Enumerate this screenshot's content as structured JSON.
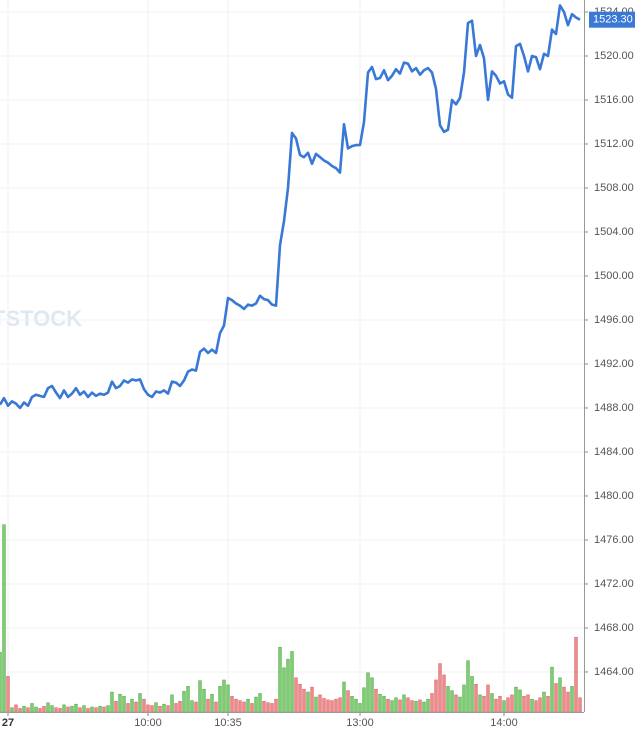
{
  "chart_data": {
    "type": "line",
    "watermark": "TSTOCK",
    "xlim": [
      0,
      146
    ],
    "xticks": [
      {
        "value": 2,
        "label": "27"
      },
      {
        "value": 37,
        "label": "10:00"
      },
      {
        "value": 57,
        "label": "10:35"
      },
      {
        "value": 90,
        "label": "13:00"
      },
      {
        "value": 126,
        "label": "14:00"
      }
    ],
    "ylim": [
      1460.36,
      1525.09
    ],
    "yticks": [
      {
        "value": 1464,
        "label": "1464.00"
      },
      {
        "value": 1468,
        "label": "1468.00"
      },
      {
        "value": 1472,
        "label": "1472.00"
      },
      {
        "value": 1476,
        "label": "1476.00"
      },
      {
        "value": 1480,
        "label": "1480.00"
      },
      {
        "value": 1484,
        "label": "1484.00"
      },
      {
        "value": 1488,
        "label": "1488.00"
      },
      {
        "value": 1492,
        "label": "1492.00"
      },
      {
        "value": 1496,
        "label": "1496.00"
      },
      {
        "value": 1500,
        "label": "1500.00"
      },
      {
        "value": 1504,
        "label": "1504.00"
      },
      {
        "value": 1508,
        "label": "1508.00"
      },
      {
        "value": 1512,
        "label": "1512.00"
      },
      {
        "value": 1516,
        "label": "1516.00"
      },
      {
        "value": 1520,
        "label": "1520.00"
      },
      {
        "value": 1524,
        "label": "1524.00"
      }
    ],
    "y2lim": [
      0,
      100
    ],
    "grid": true,
    "last_value_label": "1523.30",
    "series": [
      {
        "type": "line",
        "color": "#3a78d6",
        "values": [
          1488.3,
          1488.9,
          1488.2,
          1488.6,
          1488.4,
          1488.0,
          1488.5,
          1488.2,
          1489.0,
          1489.2,
          1489.1,
          1489.0,
          1489.8,
          1490.0,
          1489.4,
          1488.9,
          1489.6,
          1489.0,
          1489.3,
          1489.8,
          1489.2,
          1489.5,
          1489.0,
          1489.4,
          1489.1,
          1489.3,
          1489.2,
          1489.4,
          1490.4,
          1489.8,
          1490.0,
          1490.5,
          1490.3,
          1490.6,
          1490.5,
          1490.6,
          1489.7,
          1489.2,
          1489.0,
          1489.5,
          1489.4,
          1489.6,
          1489.3,
          1490.4,
          1490.3,
          1490.0,
          1490.5,
          1491.3,
          1491.5,
          1491.4,
          1493.1,
          1493.4,
          1493.0,
          1493.3,
          1493.0,
          1494.8,
          1495.5,
          1498.0,
          1497.8,
          1497.5,
          1497.3,
          1497.0,
          1497.4,
          1497.3,
          1497.5,
          1498.2,
          1497.9,
          1497.8,
          1497.4,
          1497.3,
          1502.8,
          1505.0,
          1508.0,
          1513.0,
          1512.5,
          1511.0,
          1510.8,
          1511.2,
          1510.2,
          1511.1,
          1510.8,
          1510.5,
          1510.3,
          1510.0,
          1509.8,
          1509.4,
          1513.8,
          1511.6,
          1511.8,
          1511.9,
          1511.9,
          1514.0,
          1518.5,
          1519.0,
          1517.9,
          1518.0,
          1518.7,
          1517.8,
          1518.2,
          1518.8,
          1518.4,
          1519.4,
          1519.3,
          1518.6,
          1518.9,
          1518.3,
          1518.7,
          1518.9,
          1518.5,
          1517.0,
          1513.7,
          1513.1,
          1513.3,
          1516.0,
          1515.6,
          1516.2,
          1518.5,
          1523.0,
          1523.2,
          1520.0,
          1521.0,
          1519.8,
          1516.0,
          1518.6,
          1518.2,
          1517.5,
          1517.7,
          1516.5,
          1516.2,
          1520.9,
          1521.1,
          1520.0,
          1518.6,
          1520.0,
          1519.9,
          1518.8,
          1520.2,
          1520.0,
          1522.4,
          1522.0,
          1524.6,
          1524.0,
          1522.8,
          1523.8,
          1523.5,
          1523.3
        ]
      },
      {
        "type": "bar",
        "axis": "y2",
        "up_color": "#7ccf6e",
        "down_color": "#f08a8a",
        "values": [
          8.4,
          26.3,
          5,
          0.6,
          1,
          0.5,
          0.8,
          0.6,
          1.2,
          0.7,
          0.5,
          0.8,
          1.3,
          0.9,
          0.6,
          0.5,
          1,
          0.7,
          0.8,
          1.1,
          0.6,
          0.9,
          0.5,
          0.7,
          0.6,
          0.8,
          0.7,
          0.9,
          2.8,
          1.5,
          2.5,
          2.2,
          1.2,
          1.8,
          1.4,
          2.6,
          1.8,
          1,
          0.9,
          1.3,
          0.8,
          1.1,
          0.9,
          2.4,
          1.2,
          1.5,
          2.9,
          3.6,
          1.6,
          1.4,
          4.4,
          3.2,
          1.8,
          2.5,
          1.4,
          3.6,
          4.5,
          3.8,
          2.2,
          1.8,
          1.6,
          1.4,
          1.8,
          1.2,
          2.1,
          2.6,
          1.5,
          1.3,
          1.2,
          1.8,
          9.1,
          6.2,
          7.4,
          8.5,
          4.8,
          3.9,
          3.2,
          2.8,
          3.5,
          2.1,
          2.4,
          1.9,
          1.7,
          1.6,
          1.8,
          2.0,
          4.2,
          3.0,
          2.2,
          1.8,
          1.2,
          3.4,
          5.5,
          4.8,
          3.2,
          2.5,
          2.2,
          1.8,
          1.6,
          2.0,
          1.7,
          2.4,
          2.0,
          1.6,
          1.5,
          1.7,
          1.4,
          1.8,
          2.6,
          4.5,
          6.8,
          5.2,
          3.6,
          3.0,
          2.4,
          2.1,
          3.8,
          7.2,
          5.0,
          3.9,
          2.4,
          2.2,
          3.8,
          2.6,
          1.8,
          2.2,
          1.6,
          2.0,
          2.4,
          3.5,
          3.1,
          2.2,
          2.4,
          1.8,
          1.6,
          2.0,
          2.8,
          2.2,
          6.3,
          4.0,
          4.8,
          3.5,
          2.8,
          3.6,
          10.5,
          2.0
        ]
      }
    ]
  }
}
